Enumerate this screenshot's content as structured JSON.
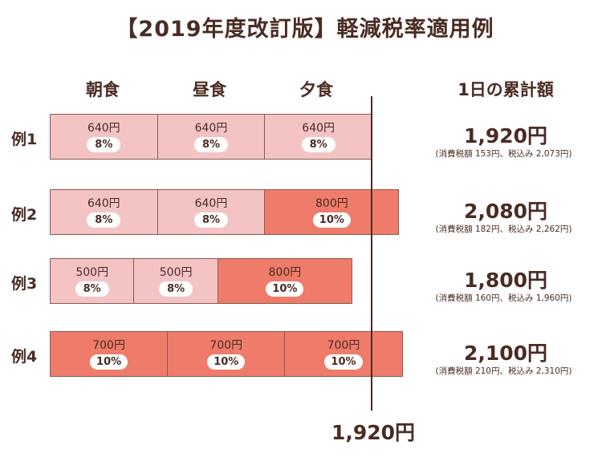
{
  "title": "【2019年度改訂版】軽減税率適用例",
  "headers": {
    "breakfast": "朝食",
    "lunch": "昼食",
    "dinner": "夕食",
    "total": "1日の累計額"
  },
  "limit_label": "1,920円",
  "chart_data": {
    "type": "bar",
    "orientation": "horizontal-stacked",
    "title": "【2019年度改訂版】軽減税率適用例",
    "categories": [
      "朝食",
      "昼食",
      "夕食"
    ],
    "rows": [
      {
        "label": "例1",
        "segments": [
          {
            "price": "640円",
            "value": 640,
            "rate": "8%"
          },
          {
            "price": "640円",
            "value": 640,
            "rate": "8%"
          },
          {
            "price": "640円",
            "value": 640,
            "rate": "8%"
          }
        ],
        "total": "1,920円",
        "note": "(消費税額 153円、税込み 2,073円)"
      },
      {
        "label": "例2",
        "segments": [
          {
            "price": "640円",
            "value": 640,
            "rate": "8%"
          },
          {
            "price": "640円",
            "value": 640,
            "rate": "8%"
          },
          {
            "price": "800円",
            "value": 800,
            "rate": "10%"
          }
        ],
        "total": "2,080円",
        "note": "(消費税額 182円、税込み 2,262円)"
      },
      {
        "label": "例3",
        "segments": [
          {
            "price": "500円",
            "value": 500,
            "rate": "8%"
          },
          {
            "price": "500円",
            "value": 500,
            "rate": "8%"
          },
          {
            "price": "800円",
            "value": 800,
            "rate": "10%"
          }
        ],
        "total": "1,800円",
        "note": "(消費税額 160円、税込み 1,960円)"
      },
      {
        "label": "例4",
        "segments": [
          {
            "price": "700円",
            "value": 700,
            "rate": "10%"
          },
          {
            "price": "700円",
            "value": 700,
            "rate": "10%"
          },
          {
            "price": "700円",
            "value": 700,
            "rate": "10%"
          }
        ],
        "total": "2,100円",
        "note": "(消費税額 210円、税込み 2,310円)"
      }
    ],
    "reference_line": 1920,
    "colors": {
      "8%": "#f4c4c4",
      "10%": "#ef7b6b"
    }
  }
}
